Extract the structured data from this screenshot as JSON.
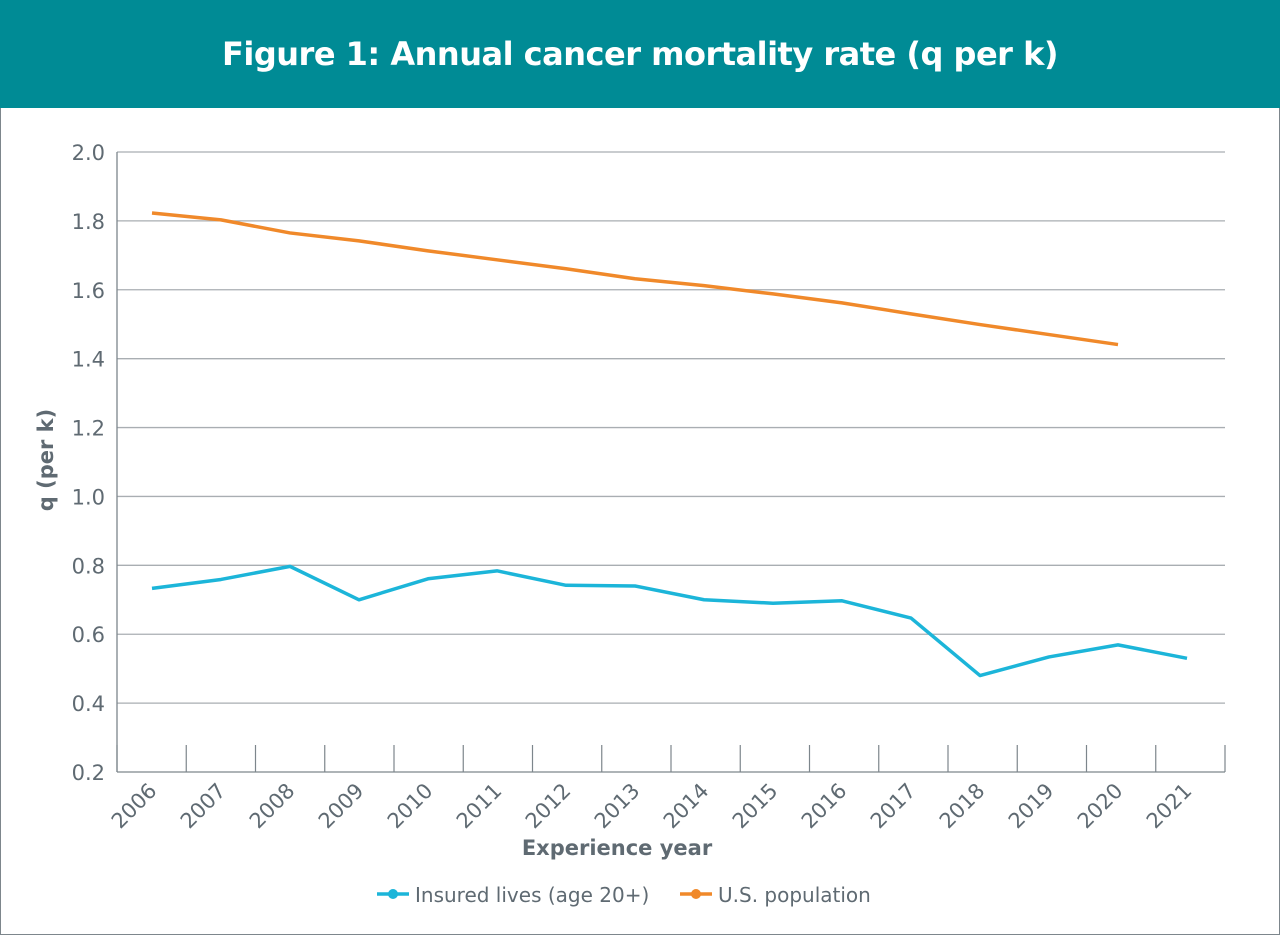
{
  "chart_data": {
    "type": "line",
    "title": "Figure 1: Annual cancer mortality rate (q per k)",
    "xlabel": "Experience year",
    "ylabel": "q (per k)",
    "ylim": [
      0.2,
      2.0
    ],
    "yticks": [
      "0.2",
      "0.4",
      "0.6",
      "0.8",
      "1.0",
      "1.2",
      "1.4",
      "1.6",
      "1.8",
      "2.0"
    ],
    "grid": true,
    "legend_position": "bottom",
    "categories": [
      "2006",
      "2007",
      "2008",
      "2009",
      "2010",
      "2011",
      "2012",
      "2013",
      "2014",
      "2015",
      "2016",
      "2017",
      "2018",
      "2019",
      "2020",
      "2021"
    ],
    "series": [
      {
        "name": "Insured lives (age 20+)",
        "color": "#1cb5d9",
        "values": [
          0.733,
          0.759,
          0.797,
          0.7,
          0.761,
          0.784,
          0.742,
          0.74,
          0.7,
          0.69,
          0.697,
          0.647,
          0.48,
          0.534,
          0.569,
          0.53
        ]
      },
      {
        "name": "U.S. population",
        "color": "#f0892a",
        "values": [
          1.823,
          1.803,
          1.765,
          1.742,
          1.713,
          1.687,
          1.661,
          1.632,
          1.612,
          1.588,
          1.562,
          1.53,
          1.499,
          1.47,
          1.441,
          null
        ]
      }
    ]
  }
}
